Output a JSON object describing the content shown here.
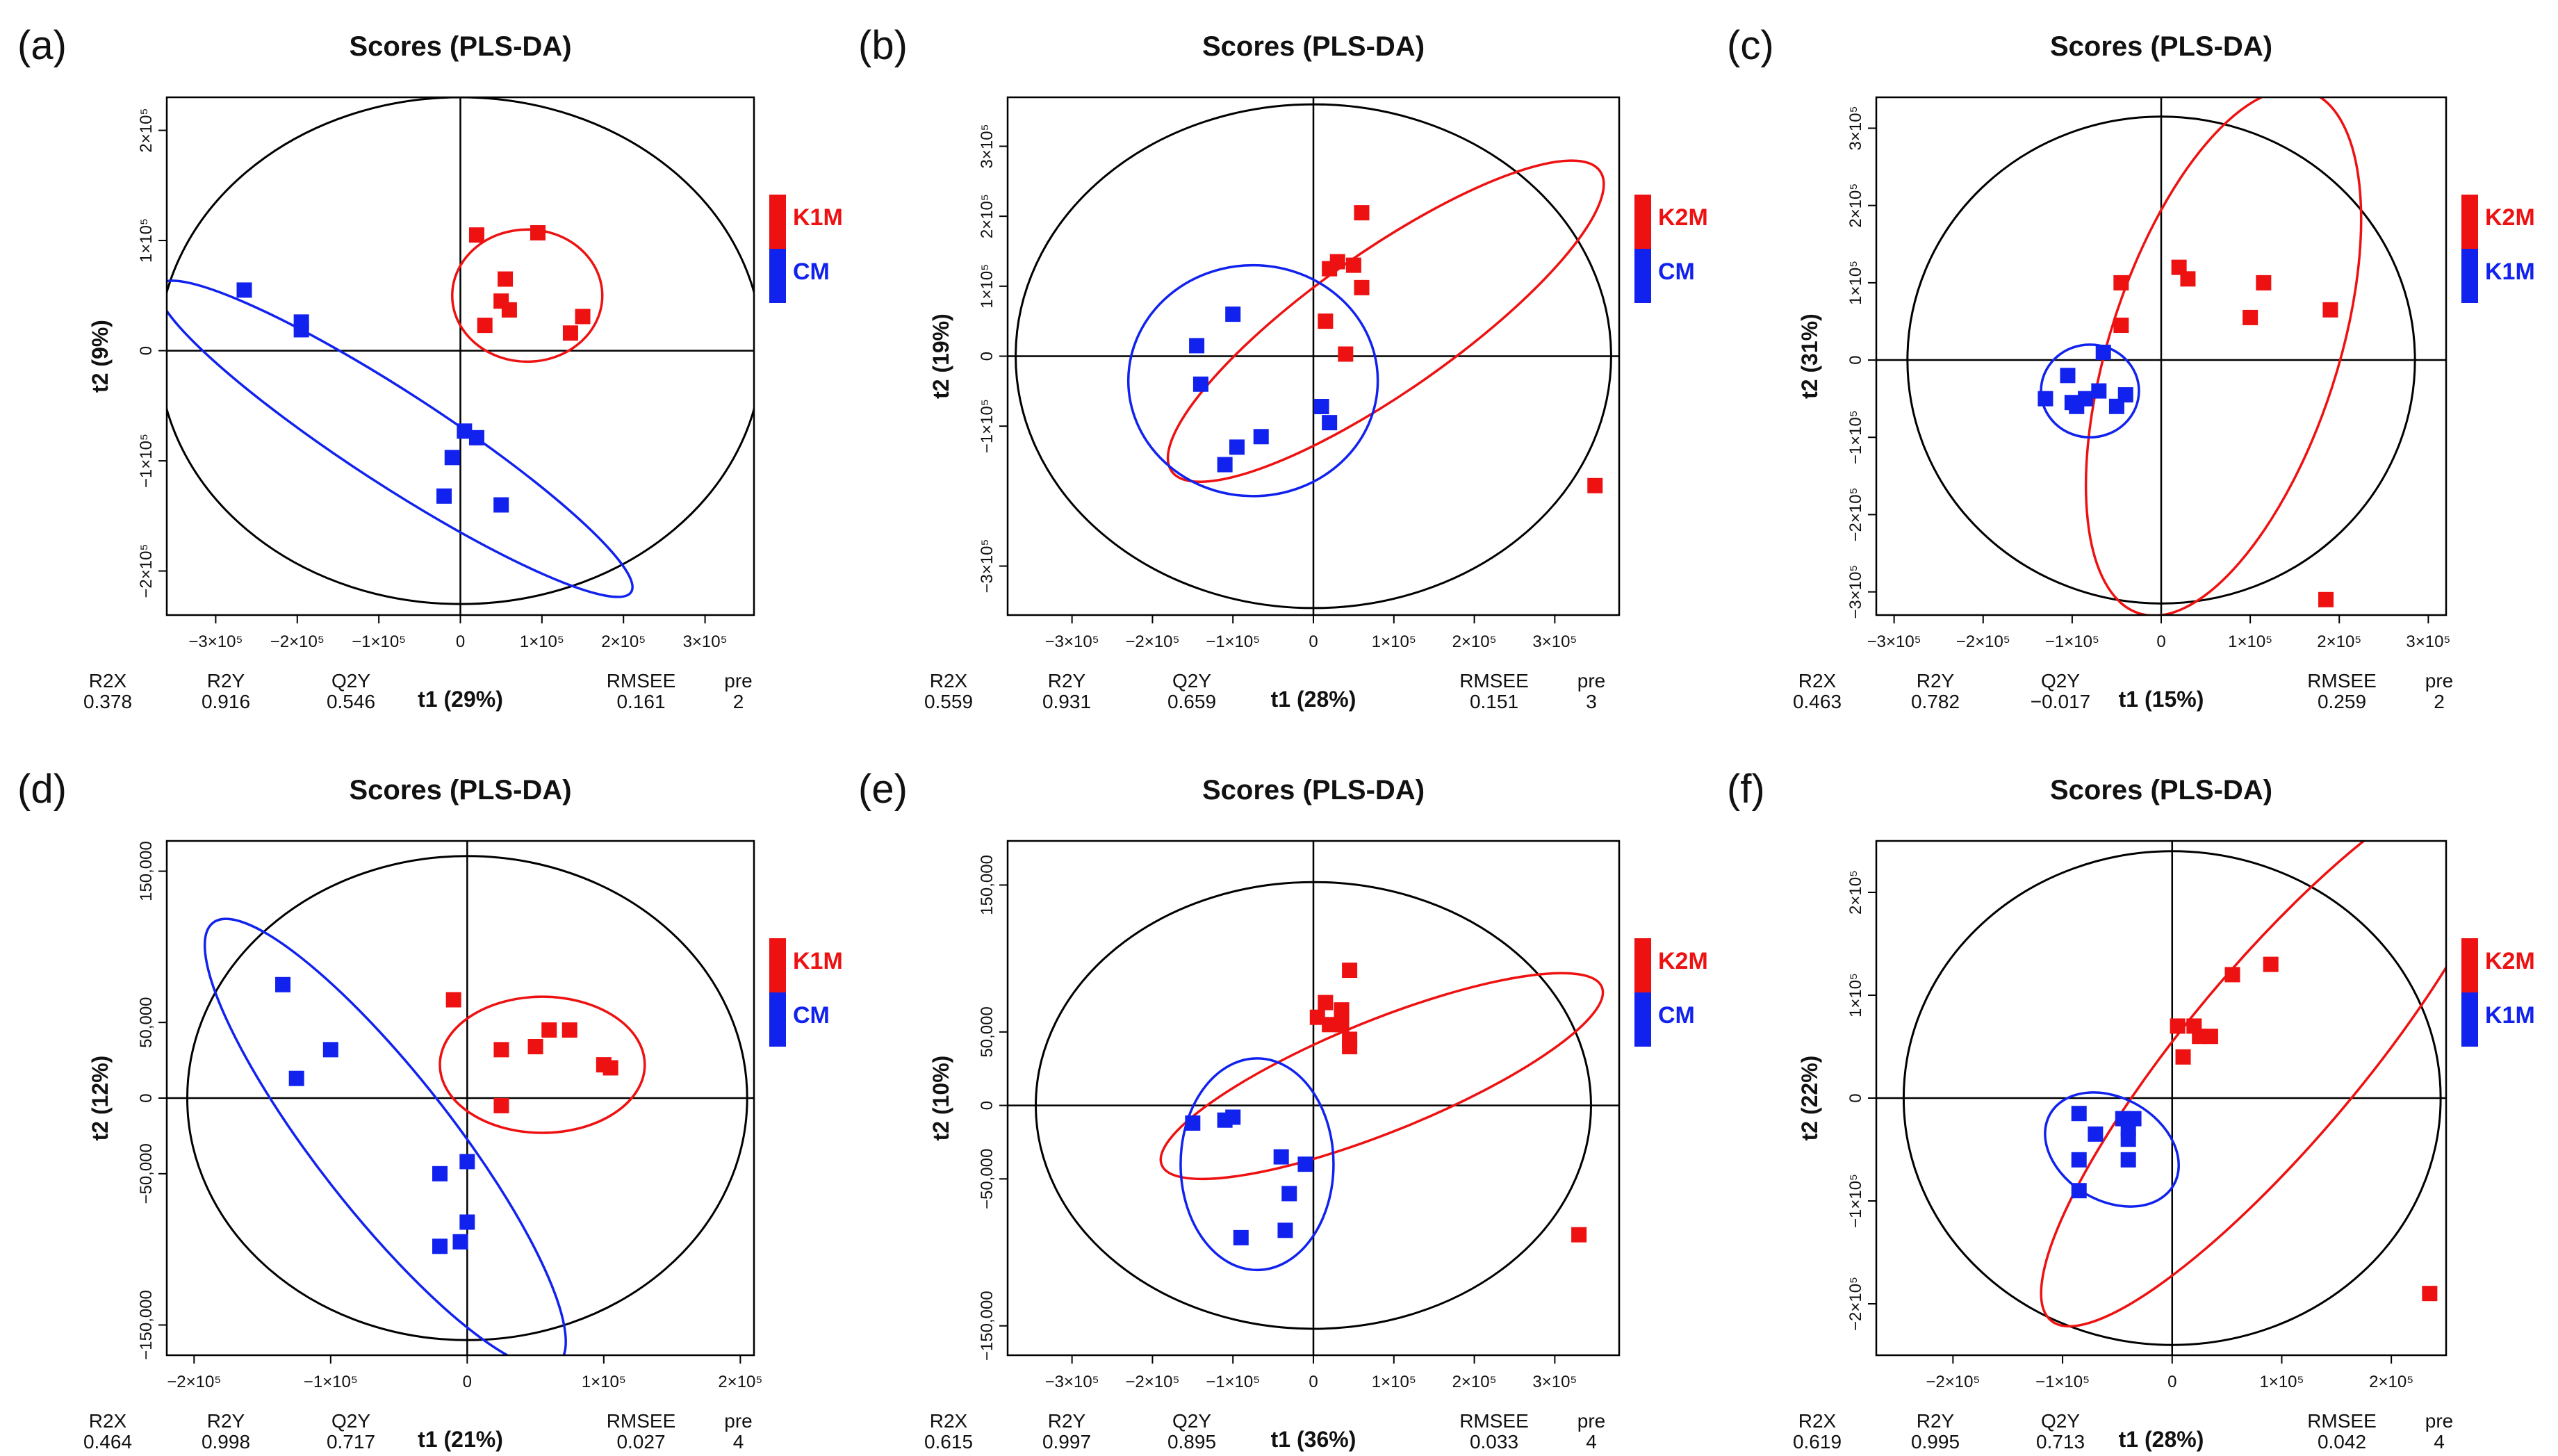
{
  "figure": {
    "colors": {
      "red": "#ee1111",
      "blue": "#1122ee",
      "frame": "#000000",
      "grid": "#000000"
    }
  },
  "chart_data": [
    {
      "type": "scatter",
      "panel_label": "(a)",
      "title": "Scores (PLS-DA)",
      "xlabel": "t1 (29%)",
      "ylabel": "t2 (9%)",
      "xlim": [
        -360000,
        360000
      ],
      "ylim": [
        -240000,
        230000
      ],
      "xticks": [
        {
          "v": -300000,
          "l": "−3×10⁵"
        },
        {
          "v": -200000,
          "l": "−2×10⁵"
        },
        {
          "v": -100000,
          "l": "−1×10⁵"
        },
        {
          "v": 0,
          "l": "0"
        },
        {
          "v": 100000,
          "l": "1×10⁵"
        },
        {
          "v": 200000,
          "l": "2×10⁵"
        },
        {
          "v": 300000,
          "l": "3×10⁵"
        }
      ],
      "yticks": [
        {
          "v": -200000,
          "l": "−2×10⁵"
        },
        {
          "v": -100000,
          "l": "−1×10⁵"
        },
        {
          "v": 0,
          "l": "0"
        },
        {
          "v": 100000,
          "l": "1×10⁵"
        },
        {
          "v": 200000,
          "l": "2×10⁵"
        }
      ],
      "ytick_rotate": true,
      "stats": [
        {
          "name": "R2X",
          "value": "0.378"
        },
        {
          "name": "R2Y",
          "value": "0.916"
        },
        {
          "name": "Q2Y",
          "value": "0.546"
        },
        {
          "name": "RMSEE",
          "value": "0.161"
        },
        {
          "name": "pre",
          "value": "2"
        }
      ],
      "legend": [
        {
          "label": "K1M",
          "color": "red"
        },
        {
          "label": "CM",
          "color": "blue"
        }
      ],
      "hotelling": {
        "rx": 370000,
        "ry": 230000
      },
      "series": [
        {
          "name": "K1M",
          "color": "red",
          "x": [
            20000,
            95000,
            55000,
            50000,
            60000,
            30000,
            135000,
            150000
          ],
          "y": [
            105000,
            107000,
            65000,
            45000,
            37000,
            23000,
            16000,
            31000
          ],
          "ellipse": {
            "cx": 82000,
            "cy": 50000,
            "rx": 92000,
            "ry": 60000,
            "angle": 0
          }
        },
        {
          "name": "CM",
          "color": "blue",
          "x": [
            -265000,
            -195000,
            -195000,
            5000,
            20000,
            -10000,
            -20000,
            50000
          ],
          "y": [
            55000,
            26000,
            19000,
            -73000,
            -79000,
            -97000,
            -132000,
            -140000
          ],
          "ellipse": {
            "cx": -80000,
            "cy": -80000,
            "rx": 345000,
            "ry": 42000,
            "angle": -33
          }
        }
      ]
    },
    {
      "type": "scatter",
      "panel_label": "(b)",
      "title": "Scores (PLS-DA)",
      "xlabel": "t1 (28%)",
      "ylabel": "t2 (19%)",
      "xlim": [
        -380000,
        380000
      ],
      "ylim": [
        -370000,
        370000
      ],
      "xticks": [
        {
          "v": -300000,
          "l": "−3×10⁵"
        },
        {
          "v": -200000,
          "l": "−2×10⁵"
        },
        {
          "v": -100000,
          "l": "−1×10⁵"
        },
        {
          "v": 0,
          "l": "0"
        },
        {
          "v": 100000,
          "l": "1×10⁵"
        },
        {
          "v": 200000,
          "l": "2×10⁵"
        },
        {
          "v": 300000,
          "l": "3×10⁵"
        }
      ],
      "yticks": [
        {
          "v": -300000,
          "l": "−3×10⁵"
        },
        {
          "v": -100000,
          "l": "−1×10⁵"
        },
        {
          "v": 0,
          "l": "0"
        },
        {
          "v": 100000,
          "l": "1×10⁵"
        },
        {
          "v": 200000,
          "l": "2×10⁵"
        },
        {
          "v": 300000,
          "l": "3×10⁵"
        }
      ],
      "ytick_rotate": true,
      "stats": [
        {
          "name": "R2X",
          "value": "0.559"
        },
        {
          "name": "R2Y",
          "value": "0.931"
        },
        {
          "name": "Q2Y",
          "value": "0.659"
        },
        {
          "name": "RMSEE",
          "value": "0.151"
        },
        {
          "name": "pre",
          "value": "3"
        }
      ],
      "legend": [
        {
          "label": "K2M",
          "color": "red"
        },
        {
          "label": "CM",
          "color": "blue"
        }
      ],
      "hotelling": {
        "rx": 370000,
        "ry": 360000
      },
      "series": [
        {
          "name": "K2M",
          "color": "red",
          "x": [
            60000,
            30000,
            20000,
            50000,
            60000,
            15000,
            40000,
            350000
          ],
          "y": [
            205000,
            135000,
            125000,
            130000,
            98000,
            50000,
            3000,
            -185000
          ],
          "ellipse": {
            "cx": 90000,
            "cy": 50000,
            "rx": 325000,
            "ry": 100000,
            "angle": 35
          }
        },
        {
          "name": "CM",
          "color": "blue",
          "x": [
            -100000,
            -145000,
            -140000,
            -65000,
            -95000,
            -110000,
            10000,
            20000
          ],
          "y": [
            60000,
            15000,
            -40000,
            -115000,
            -130000,
            -155000,
            -72000,
            -95000
          ],
          "ellipse": {
            "cx": -75000,
            "cy": -35000,
            "rx": 155000,
            "ry": 165000,
            "angle": 0
          }
        }
      ]
    },
    {
      "type": "scatter",
      "panel_label": "(c)",
      "title": "Scores (PLS-DA)",
      "xlabel": "t1 (15%)",
      "ylabel": "t2 (31%)",
      "xlim": [
        -320000,
        320000
      ],
      "ylim": [
        -330000,
        340000
      ],
      "xticks": [
        {
          "v": -300000,
          "l": "−3×10⁵"
        },
        {
          "v": -200000,
          "l": "−2×10⁵"
        },
        {
          "v": -100000,
          "l": "−1×10⁵"
        },
        {
          "v": 0,
          "l": "0"
        },
        {
          "v": 100000,
          "l": "1×10⁵"
        },
        {
          "v": 200000,
          "l": "2×10⁵"
        },
        {
          "v": 300000,
          "l": "3×10⁵"
        }
      ],
      "yticks": [
        {
          "v": -300000,
          "l": "−3×10⁵"
        },
        {
          "v": -200000,
          "l": "−2×10⁵"
        },
        {
          "v": -100000,
          "l": "−1×10⁵"
        },
        {
          "v": 0,
          "l": "0"
        },
        {
          "v": 100000,
          "l": "1×10⁵"
        },
        {
          "v": 200000,
          "l": "2×10⁵"
        },
        {
          "v": 300000,
          "l": "3×10⁵"
        }
      ],
      "ytick_rotate": true,
      "stats": [
        {
          "name": "R2X",
          "value": "0.463"
        },
        {
          "name": "R2Y",
          "value": "0.782"
        },
        {
          "name": "Q2Y",
          "value": "−0.017"
        },
        {
          "name": "RMSEE",
          "value": "0.259"
        },
        {
          "name": "pre",
          "value": "2"
        }
      ],
      "legend": [
        {
          "label": "K2M",
          "color": "red"
        },
        {
          "label": "K1M",
          "color": "blue"
        }
      ],
      "hotelling": {
        "rx": 285000,
        "ry": 315000
      },
      "series": [
        {
          "name": "K2M",
          "color": "red",
          "x": [
            -45000,
            -45000,
            20000,
            30000,
            115000,
            100000,
            190000,
            185000
          ],
          "y": [
            100000,
            45000,
            120000,
            105000,
            100000,
            55000,
            65000,
            -310000
          ],
          "ellipse": {
            "cx": 70000,
            "cy": 10000,
            "rx": 128000,
            "ry": 355000,
            "angle": -18
          }
        },
        {
          "name": "K1M",
          "color": "blue",
          "x": [
            -130000,
            -100000,
            -95000,
            -65000,
            -40000,
            -50000,
            -85000,
            -70000,
            -105000
          ],
          "y": [
            -50000,
            -55000,
            -60000,
            10000,
            -45000,
            -60000,
            -50000,
            -40000,
            -20000
          ],
          "ellipse": {
            "cx": -80000,
            "cy": -40000,
            "rx": 55000,
            "ry": 60000,
            "angle": 0
          }
        }
      ]
    },
    {
      "type": "scatter",
      "panel_label": "(d)",
      "title": "Scores (PLS-DA)",
      "xlabel": "t1 (21%)",
      "ylabel": "t2 (12%)",
      "xlim": [
        -220000,
        210000
      ],
      "ylim": [
        -170000,
        170000
      ],
      "xticks": [
        {
          "v": -200000,
          "l": "−2×10⁵"
        },
        {
          "v": -100000,
          "l": "−1×10⁵"
        },
        {
          "v": 0,
          "l": "0"
        },
        {
          "v": 100000,
          "l": "1×10⁵"
        },
        {
          "v": 200000,
          "l": "2×10⁵"
        }
      ],
      "yticks": [
        {
          "v": -150000,
          "l": "−150,000"
        },
        {
          "v": -50000,
          "l": "−50,000"
        },
        {
          "v": 0,
          "l": "0"
        },
        {
          "v": 50000,
          "l": "50,000"
        },
        {
          "v": 150000,
          "l": "150,000"
        }
      ],
      "ytick_rotate": false,
      "stats": [
        {
          "name": "R2X",
          "value": "0.464"
        },
        {
          "name": "R2Y",
          "value": "0.998"
        },
        {
          "name": "Q2Y",
          "value": "0.717"
        },
        {
          "name": "RMSEE",
          "value": "0.027"
        },
        {
          "name": "pre",
          "value": "4"
        }
      ],
      "legend": [
        {
          "label": "K1M",
          "color": "red"
        },
        {
          "label": "CM",
          "color": "blue"
        }
      ],
      "hotelling": {
        "rx": 205000,
        "ry": 160000
      },
      "series": [
        {
          "name": "K1M",
          "color": "red",
          "x": [
            -10000,
            25000,
            50000,
            60000,
            75000,
            100000,
            105000,
            25000
          ],
          "y": [
            65000,
            32000,
            34000,
            45000,
            45000,
            22000,
            20000,
            -5000
          ],
          "ellipse": {
            "cx": 55000,
            "cy": 22000,
            "rx": 75000,
            "ry": 45000,
            "angle": 0
          }
        },
        {
          "name": "CM",
          "color": "blue",
          "x": [
            -135000,
            -100000,
            -125000,
            -20000,
            0,
            0,
            -20000,
            -5000
          ],
          "y": [
            75000,
            32000,
            13000,
            -50000,
            -42000,
            -82000,
            -98000,
            -95000
          ],
          "ellipse": {
            "cx": -60000,
            "cy": -30000,
            "rx": 205000,
            "ry": 45000,
            "angle": -52
          }
        }
      ]
    },
    {
      "type": "scatter",
      "panel_label": "(e)",
      "title": "Scores (PLS-DA)",
      "xlabel": "t1 (36%)",
      "ylabel": "t2 (10%)",
      "xlim": [
        -380000,
        380000
      ],
      "ylim": [
        -170000,
        180000
      ],
      "xticks": [
        {
          "v": -300000,
          "l": "−3×10⁵"
        },
        {
          "v": -200000,
          "l": "−2×10⁵"
        },
        {
          "v": -100000,
          "l": "−1×10⁵"
        },
        {
          "v": 0,
          "l": "0"
        },
        {
          "v": 100000,
          "l": "1×10⁵"
        },
        {
          "v": 200000,
          "l": "2×10⁵"
        },
        {
          "v": 300000,
          "l": "3×10⁵"
        }
      ],
      "yticks": [
        {
          "v": -150000,
          "l": "−150,000"
        },
        {
          "v": -50000,
          "l": "−50,000"
        },
        {
          "v": 0,
          "l": "0"
        },
        {
          "v": 50000,
          "l": "50,000"
        },
        {
          "v": 150000,
          "l": "150,000"
        }
      ],
      "ytick_rotate": true,
      "stats": [
        {
          "name": "R2X",
          "value": "0.615"
        },
        {
          "name": "R2Y",
          "value": "0.997"
        },
        {
          "name": "Q2Y",
          "value": "0.895"
        },
        {
          "name": "RMSEE",
          "value": "0.033"
        },
        {
          "name": "pre",
          "value": "4"
        }
      ],
      "legend": [
        {
          "label": "K2M",
          "color": "red"
        },
        {
          "label": "CM",
          "color": "blue"
        }
      ],
      "hotelling": {
        "rx": 345000,
        "ry": 152000
      },
      "series": [
        {
          "name": "K2M",
          "color": "red",
          "x": [
            45000,
            15000,
            35000,
            45000,
            5000,
            20000,
            35000,
            45000,
            330000
          ],
          "y": [
            92000,
            70000,
            65000,
            45000,
            60000,
            55000,
            55000,
            40000,
            -88000
          ],
          "ellipse": {
            "cx": 85000,
            "cy": 20000,
            "rx": 295000,
            "ry": 38000,
            "angle": 22
          }
        },
        {
          "name": "CM",
          "color": "blue",
          "x": [
            -150000,
            -110000,
            -100000,
            -40000,
            -10000,
            -30000,
            -35000,
            -90000
          ],
          "y": [
            -12000,
            -10000,
            -8000,
            -35000,
            -40000,
            -60000,
            -85000,
            -90000
          ],
          "ellipse": {
            "cx": -70000,
            "cy": -40000,
            "rx": 95000,
            "ry": 72000,
            "angle": 0
          }
        }
      ]
    },
    {
      "type": "scatter",
      "panel_label": "(f)",
      "title": "Scores (PLS-DA)",
      "xlabel": "t1 (28%)",
      "ylabel": "t2 (22%)",
      "xlim": [
        -270000,
        250000
      ],
      "ylim": [
        -250000,
        250000
      ],
      "xticks": [
        {
          "v": -200000,
          "l": "−2×10⁵"
        },
        {
          "v": -100000,
          "l": "−1×10⁵"
        },
        {
          "v": 0,
          "l": "0"
        },
        {
          "v": 100000,
          "l": "1×10⁵"
        },
        {
          "v": 200000,
          "l": "2×10⁵"
        }
      ],
      "yticks": [
        {
          "v": -200000,
          "l": "−2×10⁵"
        },
        {
          "v": -100000,
          "l": "−1×10⁵"
        },
        {
          "v": 0,
          "l": "0"
        },
        {
          "v": 100000,
          "l": "1×10⁵"
        },
        {
          "v": 200000,
          "l": "2×10⁵"
        }
      ],
      "ytick_rotate": true,
      "stats": [
        {
          "name": "R2X",
          "value": "0.619"
        },
        {
          "name": "R2Y",
          "value": "0.995"
        },
        {
          "name": "Q2Y",
          "value": "0.713"
        },
        {
          "name": "RMSEE",
          "value": "0.042"
        },
        {
          "name": "pre",
          "value": "4"
        }
      ],
      "legend": [
        {
          "label": "K2M",
          "color": "red"
        },
        {
          "label": "K1M",
          "color": "blue"
        }
      ],
      "hotelling": {
        "rx": 245000,
        "ry": 240000
      },
      "series": [
        {
          "name": "K2M",
          "color": "red",
          "x": [
            90000,
            55000,
            5000,
            20000,
            25000,
            35000,
            10000,
            235000
          ],
          "y": [
            130000,
            120000,
            70000,
            70000,
            60000,
            60000,
            40000,
            -190000
          ],
          "ellipse": {
            "cx": 95000,
            "cy": 45000,
            "rx": 320000,
            "ry": 85000,
            "angle": 50
          }
        },
        {
          "name": "K1M",
          "color": "blue",
          "x": [
            -85000,
            -45000,
            -70000,
            -35000,
            -40000,
            -85000,
            -85000,
            -40000,
            -40000
          ],
          "y": [
            -15000,
            -20000,
            -35000,
            -20000,
            -40000,
            -60000,
            -90000,
            -60000,
            -30000
          ],
          "ellipse": {
            "cx": -55000,
            "cy": -50000,
            "rx": 65000,
            "ry": 50000,
            "angle": -30
          }
        }
      ]
    }
  ]
}
